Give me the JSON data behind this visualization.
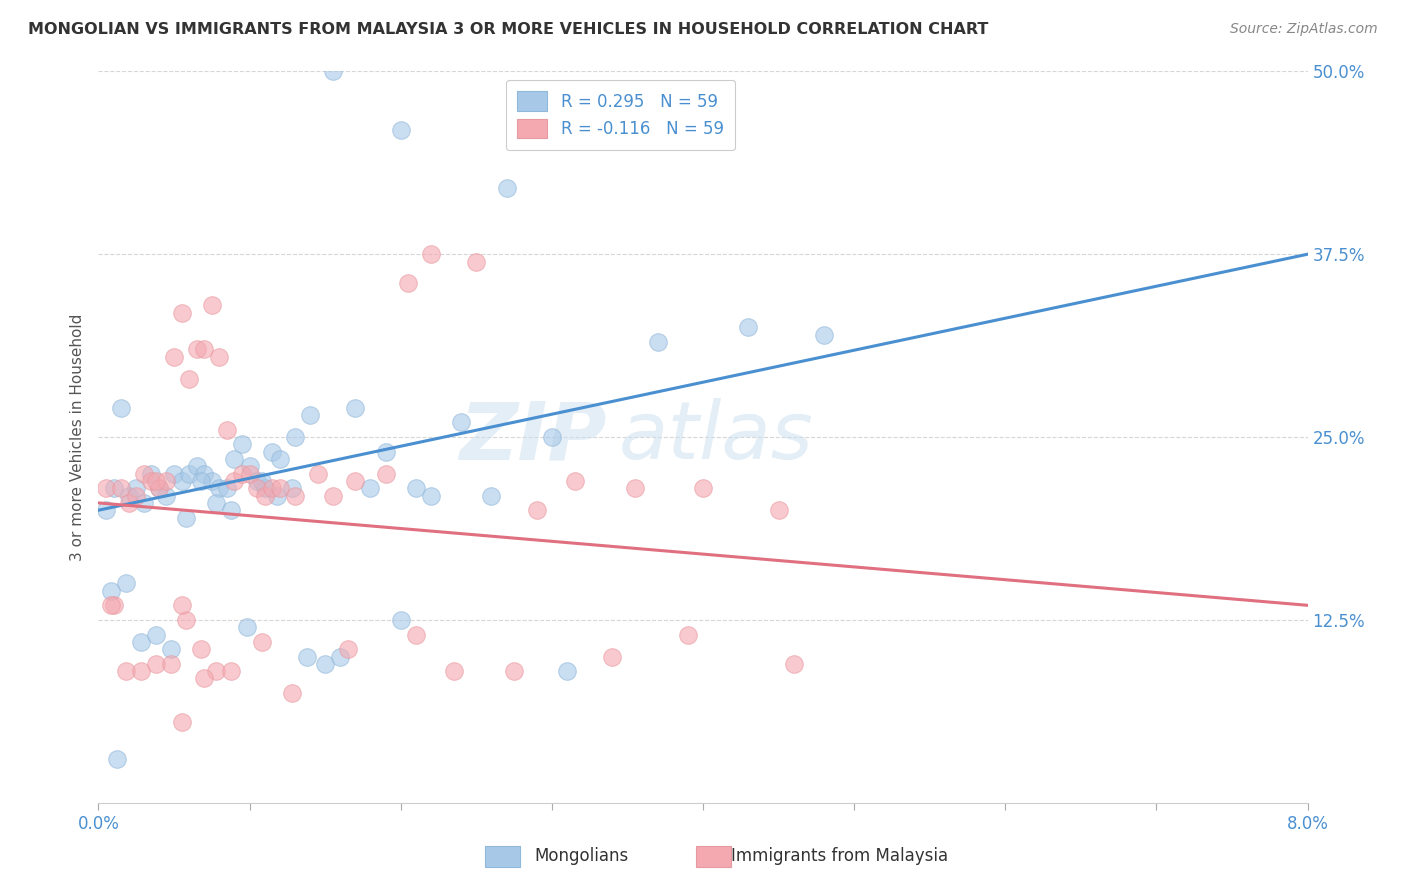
{
  "title": "MONGOLIAN VS IMMIGRANTS FROM MALAYSIA 3 OR MORE VEHICLES IN HOUSEHOLD CORRELATION CHART",
  "source": "Source: ZipAtlas.com",
  "ylabel": "3 or more Vehicles in Household",
  "xlim": [
    0.0,
    8.0
  ],
  "ylim": [
    0.0,
    50.0
  ],
  "yticks": [
    12.5,
    25.0,
    37.5,
    50.0
  ],
  "legend_blue_r": "R = 0.295",
  "legend_blue_n": "N = 59",
  "legend_pink_r": "R = -0.116",
  "legend_pink_n": "N = 59",
  "blue_color": "#a8c8e8",
  "pink_color": "#f4a8b0",
  "blue_line_color": "#4a90d0",
  "pink_line_color": "#e07080",
  "watermark_zip": "ZIP",
  "watermark_atlas": "atlas",
  "blue_line_x0": 0.0,
  "blue_line_y0": 20.0,
  "blue_line_x1": 8.0,
  "blue_line_y1": 37.5,
  "pink_line_x0": 0.0,
  "pink_line_y0": 20.5,
  "pink_line_x1": 8.0,
  "pink_line_y1": 13.5,
  "blue_scatter_x": [
    1.55,
    2.0,
    2.7,
    0.05,
    0.1,
    0.15,
    0.2,
    0.25,
    0.3,
    0.35,
    0.4,
    0.45,
    0.5,
    0.55,
    0.6,
    0.65,
    0.7,
    0.75,
    0.8,
    0.85,
    0.9,
    0.95,
    1.0,
    1.05,
    1.1,
    1.15,
    1.2,
    1.3,
    1.4,
    1.7,
    1.9,
    2.1,
    2.4,
    3.0,
    3.7,
    4.8,
    0.08,
    0.18,
    0.28,
    0.38,
    0.48,
    0.58,
    0.68,
    0.78,
    0.88,
    0.98,
    1.08,
    1.18,
    1.28,
    1.38,
    1.5,
    1.6,
    1.8,
    2.0,
    2.2,
    2.6,
    3.1,
    4.3,
    0.12
  ],
  "blue_scatter_y": [
    50.0,
    46.0,
    42.0,
    20.0,
    21.5,
    27.0,
    21.0,
    21.5,
    20.5,
    22.5,
    21.5,
    21.0,
    22.5,
    22.0,
    22.5,
    23.0,
    22.5,
    22.0,
    21.5,
    21.5,
    23.5,
    24.5,
    23.0,
    22.0,
    21.5,
    24.0,
    23.5,
    25.0,
    26.5,
    27.0,
    24.0,
    21.5,
    26.0,
    25.0,
    31.5,
    32.0,
    14.5,
    15.0,
    11.0,
    11.5,
    10.5,
    19.5,
    22.0,
    20.5,
    20.0,
    12.0,
    22.0,
    21.0,
    21.5,
    10.0,
    9.5,
    10.0,
    21.5,
    12.5,
    21.0,
    21.0,
    9.0,
    32.5,
    3.0
  ],
  "pink_scatter_x": [
    0.05,
    0.1,
    0.15,
    0.2,
    0.25,
    0.3,
    0.35,
    0.4,
    0.45,
    0.5,
    0.55,
    0.6,
    0.65,
    0.7,
    0.75,
    0.8,
    0.85,
    0.9,
    0.95,
    1.0,
    1.05,
    1.1,
    1.15,
    1.2,
    1.3,
    1.45,
    1.55,
    1.7,
    1.9,
    2.05,
    2.2,
    2.5,
    2.9,
    3.15,
    3.55,
    4.0,
    4.5,
    0.08,
    0.18,
    0.28,
    0.38,
    0.48,
    0.58,
    0.68,
    0.78,
    0.88,
    1.08,
    1.28,
    1.65,
    2.1,
    2.35,
    2.75,
    3.4,
    3.9,
    4.6,
    0.55,
    0.7,
    0.55,
    0.38
  ],
  "pink_scatter_y": [
    21.5,
    13.5,
    21.5,
    20.5,
    21.0,
    22.5,
    22.0,
    21.5,
    22.0,
    30.5,
    33.5,
    29.0,
    31.0,
    31.0,
    34.0,
    30.5,
    25.5,
    22.0,
    22.5,
    22.5,
    21.5,
    21.0,
    21.5,
    21.5,
    21.0,
    22.5,
    21.0,
    22.0,
    22.5,
    35.5,
    37.5,
    37.0,
    20.0,
    22.0,
    21.5,
    21.5,
    20.0,
    13.5,
    9.0,
    9.0,
    9.5,
    9.5,
    12.5,
    10.5,
    9.0,
    9.0,
    11.0,
    7.5,
    10.5,
    11.5,
    9.0,
    9.0,
    10.0,
    11.5,
    9.5,
    13.5,
    8.5,
    5.5,
    22.0
  ]
}
